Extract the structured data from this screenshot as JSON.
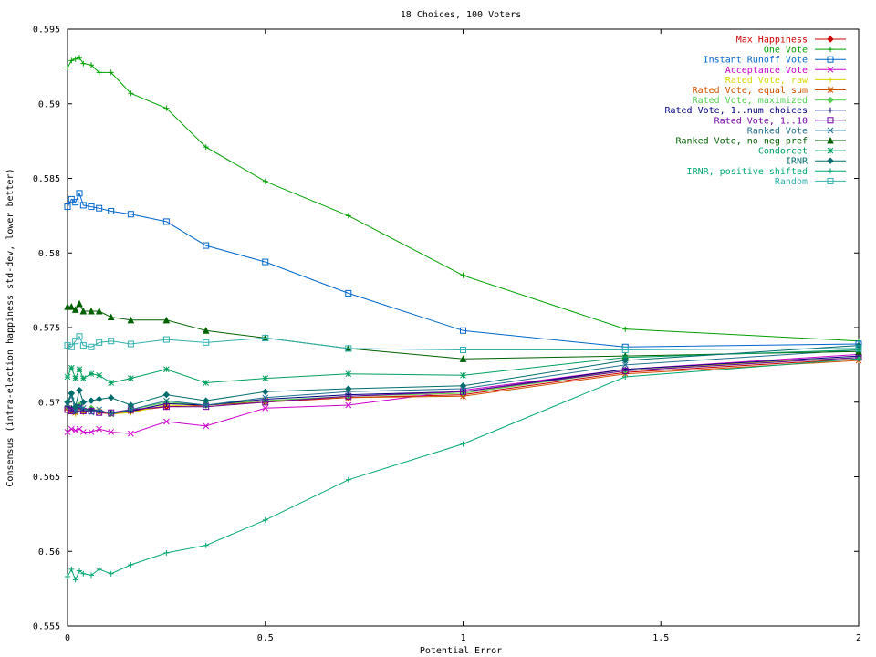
{
  "chart_data": {
    "type": "line",
    "title": "18 Choices, 100 Voters",
    "xlabel": "Potential Error",
    "ylabel": "Consensus (intra-election happiness std-dev, lower better)",
    "xlim": [
      0,
      2
    ],
    "ylim": [
      0.555,
      0.595
    ],
    "xticks": [
      0,
      0.5,
      1,
      1.5,
      2
    ],
    "xtick_labels": [
      "0",
      "0.5",
      "1",
      "1.5",
      "2"
    ],
    "yticks": [
      0.555,
      0.56,
      0.565,
      0.57,
      0.575,
      0.58,
      0.585,
      0.59,
      0.595
    ],
    "ytick_labels": [
      "0.555",
      "0.56",
      "0.565",
      "0.57",
      "0.575",
      "0.58",
      "0.585",
      "0.59",
      "0.595"
    ],
    "grid": false,
    "legend_position": "top-right",
    "x": [
      0,
      0.01,
      0.02,
      0.03,
      0.04,
      0.06,
      0.08,
      0.11,
      0.16,
      0.25,
      0.35,
      0.5,
      0.71,
      1.0,
      1.41,
      2.0
    ],
    "series": [
      {
        "name": "Max Happiness",
        "color": "#cc0000",
        "marker": "diamond",
        "values": [
          0.5696,
          0.5694,
          0.5695,
          0.5697,
          0.5694,
          0.5695,
          0.5694,
          0.5693,
          0.5694,
          0.5697,
          0.5698,
          0.57,
          0.5703,
          0.5705,
          0.572,
          0.5729
        ]
      },
      {
        "name": "One Vote",
        "color": "#00a000",
        "marker": "plus",
        "values": [
          0.5924,
          0.5929,
          0.593,
          0.5931,
          0.5927,
          0.5926,
          0.5921,
          0.5921,
          0.5907,
          0.5897,
          0.5871,
          0.5848,
          0.5825,
          0.5785,
          0.5749,
          0.5741
        ]
      },
      {
        "name": "Instant Runoff Vote",
        "color": "#0066cc",
        "marker": "square",
        "values": [
          0.5831,
          0.5836,
          0.5834,
          0.584,
          0.5832,
          0.5831,
          0.583,
          0.5828,
          0.5826,
          0.5821,
          0.5805,
          0.5794,
          0.5773,
          0.5748,
          0.5737,
          0.5739
        ]
      },
      {
        "name": "Acceptance Vote",
        "color": "#cc00cc",
        "marker": "x",
        "values": [
          0.568,
          0.5682,
          0.5681,
          0.5682,
          0.568,
          0.568,
          0.5682,
          0.568,
          0.5679,
          0.5687,
          0.5684,
          0.5696,
          0.5698,
          0.5708,
          0.5722,
          0.5732
        ]
      },
      {
        "name": "Rated Vote, raw",
        "color": "#d8d800",
        "marker": "plus",
        "values": [
          0.5695,
          0.5696,
          0.5692,
          0.5696,
          0.5693,
          0.5694,
          0.5695,
          0.5692,
          0.5693,
          0.5698,
          0.5697,
          0.57,
          0.5704,
          0.5706,
          0.5722,
          0.573
        ]
      },
      {
        "name": "Rated Vote, equal sum",
        "color": "#d05000",
        "marker": "asterisk",
        "values": [
          0.5696,
          0.5694,
          0.5693,
          0.5697,
          0.5694,
          0.5695,
          0.5693,
          0.5692,
          0.5694,
          0.5699,
          0.5698,
          0.5701,
          0.5703,
          0.5704,
          0.5719,
          0.5728
        ]
      },
      {
        "name": "Rated Vote, maximized",
        "color": "#50d050",
        "marker": "diamond",
        "values": [
          0.5697,
          0.5695,
          0.5694,
          0.5698,
          0.5695,
          0.5696,
          0.5694,
          0.5693,
          0.5695,
          0.57,
          0.5698,
          0.5701,
          0.5704,
          0.5706,
          0.5721,
          0.573
        ]
      },
      {
        "name": "Rated Vote, 1..num choices",
        "color": "#000080",
        "marker": "plus",
        "values": [
          0.5697,
          0.5696,
          0.5694,
          0.5697,
          0.5695,
          0.5695,
          0.5694,
          0.5693,
          0.5694,
          0.5699,
          0.5698,
          0.5702,
          0.5705,
          0.5707,
          0.5722,
          0.5731
        ]
      },
      {
        "name": "Rated Vote, 1..10",
        "color": "#7000a0",
        "marker": "square",
        "values": [
          0.5695,
          0.5694,
          0.5695,
          0.5696,
          0.5694,
          0.5694,
          0.5693,
          0.5693,
          0.5695,
          0.5697,
          0.5697,
          0.57,
          0.5704,
          0.5707,
          0.5721,
          0.573
        ]
      },
      {
        "name": "Ranked Vote",
        "color": "#207090",
        "marker": "x",
        "values": [
          0.5699,
          0.5704,
          0.5694,
          0.5697,
          0.5696,
          0.5693,
          0.5695,
          0.5692,
          0.5695,
          0.5701,
          0.5698,
          0.5703,
          0.5707,
          0.5709,
          0.5725,
          0.5735
        ]
      },
      {
        "name": "Ranked Vote, no neg pref",
        "color": "#006000",
        "marker": "triangle",
        "values": [
          0.5764,
          0.5764,
          0.5762,
          0.5766,
          0.5761,
          0.5761,
          0.5761,
          0.5757,
          0.5755,
          0.5755,
          0.5748,
          0.5743,
          0.5736,
          0.5729,
          0.5731,
          0.5734
        ]
      },
      {
        "name": "Condorcet",
        "color": "#00a060",
        "marker": "asterisk",
        "values": [
          0.5717,
          0.5723,
          0.5716,
          0.5722,
          0.5716,
          0.5719,
          0.5718,
          0.5713,
          0.5716,
          0.5722,
          0.5713,
          0.5716,
          0.5719,
          0.5718,
          0.573,
          0.5735
        ]
      },
      {
        "name": "IRNR",
        "color": "#006c6c",
        "marker": "diamond",
        "values": [
          0.57,
          0.5706,
          0.5697,
          0.5708,
          0.57,
          0.5701,
          0.5702,
          0.5703,
          0.5698,
          0.5705,
          0.5701,
          0.5707,
          0.5709,
          0.5711,
          0.5728,
          0.5738
        ]
      },
      {
        "name": "IRNR, positive shifted",
        "color": "#00a870",
        "marker": "plus",
        "values": [
          0.5583,
          0.5588,
          0.5581,
          0.5587,
          0.5585,
          0.5584,
          0.5588,
          0.5585,
          0.5591,
          0.5599,
          0.5604,
          0.5621,
          0.5648,
          0.5672,
          0.5717,
          0.5729
        ]
      },
      {
        "name": "Random",
        "color": "#30b0b0",
        "marker": "square",
        "values": [
          0.5738,
          0.5737,
          0.5741,
          0.5744,
          0.5738,
          0.5737,
          0.574,
          0.5741,
          0.5739,
          0.5742,
          0.574,
          0.5743,
          0.5736,
          0.5735,
          0.5735,
          0.5736
        ]
      }
    ]
  }
}
